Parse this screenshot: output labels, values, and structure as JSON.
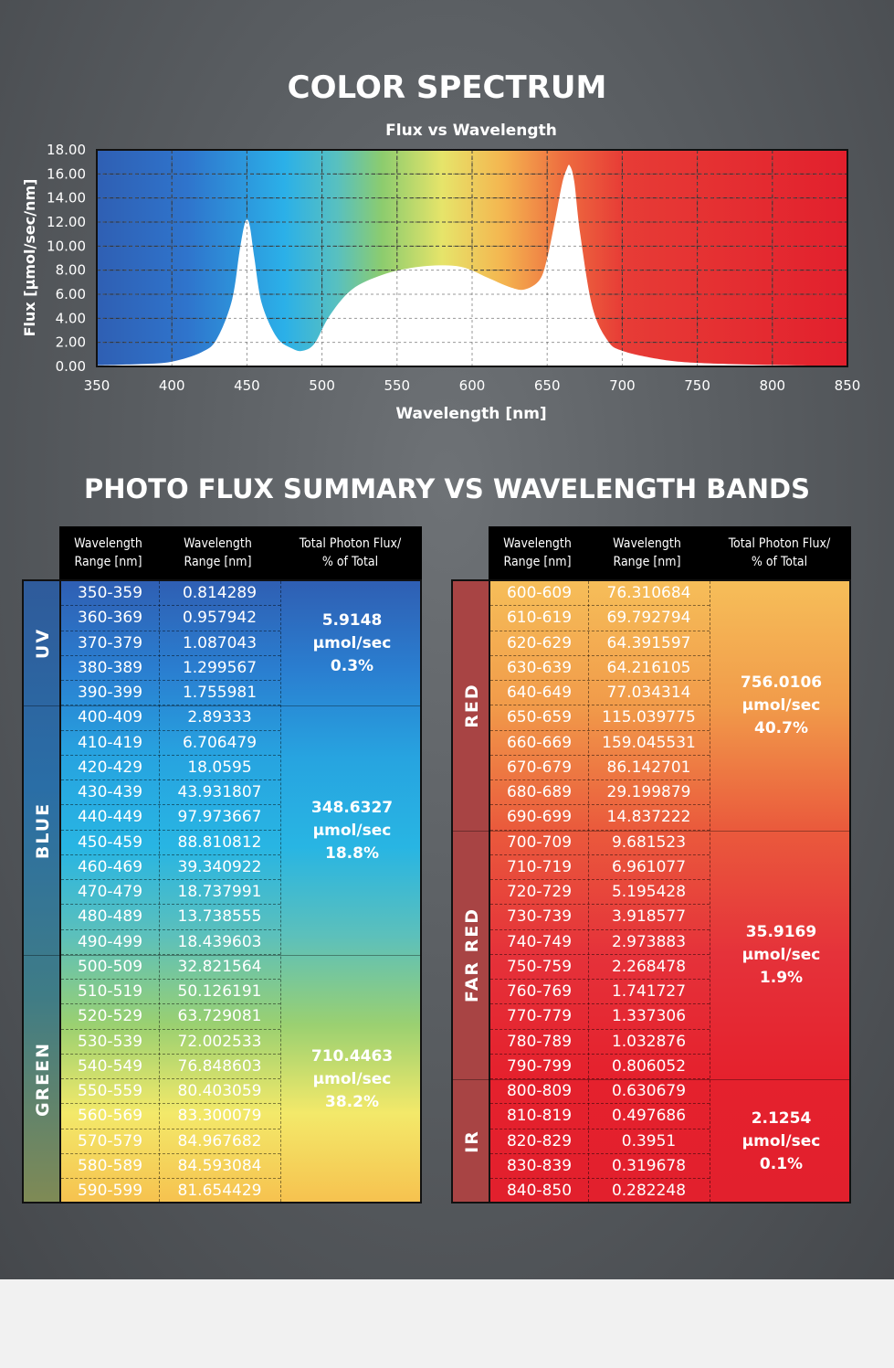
{
  "title": "COLOR SPECTRUM",
  "chart_data": {
    "type": "area",
    "title": "Flux vs Wavelength",
    "xlabel": "Wavelength [nm]",
    "ylabel": "Flux [µmol/sec/nm]",
    "xlim": [
      350,
      850
    ],
    "ylim": [
      0,
      18
    ],
    "x_ticks": [
      "350",
      "400",
      "450",
      "500",
      "550",
      "600",
      "650",
      "700",
      "750",
      "800",
      "850"
    ],
    "y_ticks": [
      "0.00",
      "2.00",
      "4.00",
      "6.00",
      "8.00",
      "10.00",
      "12.00",
      "14.00",
      "16.00",
      "18.00"
    ],
    "grid": true,
    "x": [
      350,
      380,
      400,
      420,
      430,
      440,
      445,
      448,
      450,
      452,
      455,
      460,
      470,
      480,
      487,
      495,
      505,
      520,
      540,
      560,
      580,
      595,
      610,
      625,
      635,
      645,
      650,
      655,
      660,
      663,
      665,
      668,
      672,
      680,
      690,
      700,
      725,
      750,
      800,
      850
    ],
    "y": [
      0.1,
      0.2,
      0.4,
      1.2,
      2.3,
      5.5,
      9.5,
      11.6,
      12.2,
      11.6,
      9.0,
      5.2,
      2.4,
      1.5,
      1.3,
      1.9,
      4.2,
      6.4,
      7.6,
      8.2,
      8.4,
      8.2,
      7.4,
      6.6,
      6.4,
      7.2,
      9.0,
      12.0,
      15.2,
      16.4,
      16.7,
      15.4,
      11.0,
      5.0,
      2.2,
      1.3,
      0.6,
      0.3,
      0.12,
      0.05
    ]
  },
  "summary_title": "PHOTO FLUX SUMMARY VS WAVELENGTH BANDS",
  "table_headers": [
    "Wavelength\nRange [nm]",
    "Wavelength\nRange [nm]",
    "Total Photon Flux/\n% of Total"
  ],
  "left_table": {
    "rows": [
      [
        "350-359",
        "0.814289"
      ],
      [
        "360-369",
        "0.957942"
      ],
      [
        "370-379",
        "1.087043"
      ],
      [
        "380-389",
        "1.299567"
      ],
      [
        "390-399",
        "1.755981"
      ],
      [
        "400-409",
        "2.89333"
      ],
      [
        "410-419",
        "6.706479"
      ],
      [
        "420-429",
        "18.0595"
      ],
      [
        "430-439",
        "43.931807"
      ],
      [
        "440-449",
        "97.973667"
      ],
      [
        "450-459",
        "88.810812"
      ],
      [
        "460-469",
        "39.340922"
      ],
      [
        "470-479",
        "18.737991"
      ],
      [
        "480-489",
        "13.738555"
      ],
      [
        "490-499",
        "18.439603"
      ],
      [
        "500-509",
        "32.821564"
      ],
      [
        "510-519",
        "50.126191"
      ],
      [
        "520-529",
        "63.729081"
      ],
      [
        "530-539",
        "72.002533"
      ],
      [
        "540-549",
        "76.848603"
      ],
      [
        "550-559",
        "80.403059"
      ],
      [
        "560-569",
        "83.300079"
      ],
      [
        "570-579",
        "84.967682"
      ],
      [
        "580-589",
        "84.593084"
      ],
      [
        "590-599",
        "81.654429"
      ]
    ],
    "bands": [
      {
        "label": "UV",
        "rows": 5,
        "flux": "5.9148",
        "unit": "µmol/sec",
        "pct": "0.3%"
      },
      {
        "label": "BLUE",
        "rows": 10,
        "flux": "348.6327",
        "unit": "µmol/sec",
        "pct": "18.8%"
      },
      {
        "label": "GREEN",
        "rows": 10,
        "flux": "710.4463",
        "unit": "µmol/sec",
        "pct": "38.2%"
      }
    ]
  },
  "right_table": {
    "rows": [
      [
        "600-609",
        "76.310684"
      ],
      [
        "610-619",
        "69.792794"
      ],
      [
        "620-629",
        "64.391597"
      ],
      [
        "630-639",
        "64.216105"
      ],
      [
        "640-649",
        "77.034314"
      ],
      [
        "650-659",
        "115.039775"
      ],
      [
        "660-669",
        "159.045531"
      ],
      [
        "670-679",
        "86.142701"
      ],
      [
        "680-689",
        "29.199879"
      ],
      [
        "690-699",
        "14.837222"
      ],
      [
        "700-709",
        "9.681523"
      ],
      [
        "710-719",
        "6.961077"
      ],
      [
        "720-729",
        "5.195428"
      ],
      [
        "730-739",
        "3.918577"
      ],
      [
        "740-749",
        "2.973883"
      ],
      [
        "750-759",
        "2.268478"
      ],
      [
        "760-769",
        "1.741727"
      ],
      [
        "770-779",
        "1.337306"
      ],
      [
        "780-789",
        "1.032876"
      ],
      [
        "790-799",
        "0.806052"
      ],
      [
        "800-809",
        "0.630679"
      ],
      [
        "810-819",
        "0.497686"
      ],
      [
        "820-829",
        "0.3951"
      ],
      [
        "830-839",
        "0.319678"
      ],
      [
        "840-850",
        "0.282248"
      ]
    ],
    "bands": [
      {
        "label": "RED",
        "rows": 10,
        "flux": "756.0106",
        "unit": "µmol/sec",
        "pct": "40.7%"
      },
      {
        "label": "FAR RED",
        "rows": 10,
        "flux": "35.9169",
        "unit": "µmol/sec",
        "pct": "1.9%"
      },
      {
        "label": "IR",
        "rows": 5,
        "flux": "2.1254",
        "unit": "µmol/sec",
        "pct": "0.1%"
      }
    ]
  },
  "colors": {
    "left_gradient": [
      "#2f5fb3",
      "#2a7ed0",
      "#27a4e0",
      "#28b5e3",
      "#5cc0bb",
      "#9ad071",
      "#f3e96a",
      "#f6c24f"
    ],
    "right_gradient": [
      "#f6be59",
      "#f19b4a",
      "#ea5a3c",
      "#e5323a",
      "#e5212d",
      "#e2202d"
    ],
    "left_band_col": [
      "#2f5b9b",
      "#2a6ea6",
      "#3f7c86",
      "#7f8a55"
    ],
    "right_band_col": "#a84444"
  }
}
